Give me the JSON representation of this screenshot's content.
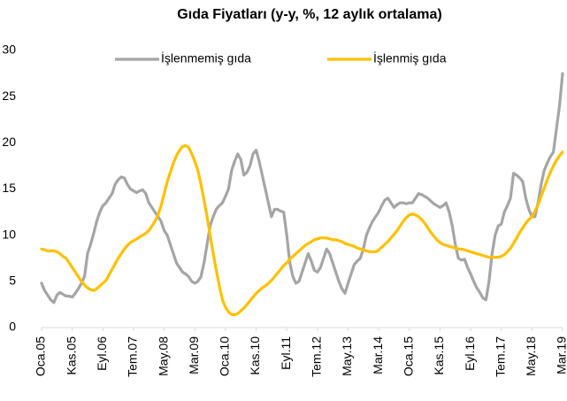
{
  "chart_data": {
    "type": "line",
    "title": "Gıda Fiyatları (y-y, %, 12 aylık ortalama)",
    "categories": [
      "Oca.05",
      null,
      null,
      null,
      null,
      null,
      null,
      null,
      null,
      null,
      "Kas.05",
      null,
      null,
      null,
      null,
      null,
      null,
      null,
      null,
      null,
      "Eyl.06",
      null,
      null,
      null,
      null,
      null,
      null,
      null,
      null,
      null,
      "Tem.07",
      null,
      null,
      null,
      null,
      null,
      null,
      null,
      null,
      null,
      "May.08",
      null,
      null,
      null,
      null,
      null,
      null,
      null,
      null,
      null,
      "Mar.09",
      null,
      null,
      null,
      null,
      null,
      null,
      null,
      null,
      null,
      "Oca.10",
      null,
      null,
      null,
      null,
      null,
      null,
      null,
      null,
      null,
      "Kas.10",
      null,
      null,
      null,
      null,
      null,
      null,
      null,
      null,
      null,
      "Eyl.11",
      null,
      null,
      null,
      null,
      null,
      null,
      null,
      null,
      null,
      "Tem.12",
      null,
      null,
      null,
      null,
      null,
      null,
      null,
      null,
      null,
      "May.13",
      null,
      null,
      null,
      null,
      null,
      null,
      null,
      null,
      null,
      "Mar.14",
      null,
      null,
      null,
      null,
      null,
      null,
      null,
      null,
      null,
      "Oca.15",
      null,
      null,
      null,
      null,
      null,
      null,
      null,
      null,
      null,
      "Kas.15",
      null,
      null,
      null,
      null,
      null,
      null,
      null,
      null,
      null,
      "Eyl.16",
      null,
      null,
      null,
      null,
      null,
      null,
      null,
      null,
      null,
      "Tem.17",
      null,
      null,
      null,
      null,
      null,
      null,
      null,
      null,
      null,
      "May.18",
      null,
      null,
      null,
      null,
      null,
      null,
      null,
      null,
      null,
      "Mar.19"
    ],
    "series": [
      {
        "name": "İşlenmemiş gıda",
        "color": "#a5a5a5",
        "values": [
          4.8,
          4.0,
          3.5,
          3.0,
          2.7,
          3.5,
          3.8,
          3.6,
          3.4,
          3.4,
          3.3,
          3.7,
          4.2,
          4.8,
          5.5,
          8.0,
          9.0,
          10.2,
          11.5,
          12.5,
          13.2,
          13.5,
          14.0,
          14.5,
          15.5,
          16.0,
          16.3,
          16.2,
          15.5,
          15.0,
          14.8,
          14.6,
          14.8,
          14.9,
          14.5,
          13.5,
          13.0,
          12.5,
          12.0,
          11.5,
          10.5,
          10.0,
          9.0,
          8.0,
          7.0,
          6.5,
          6.0,
          5.8,
          5.5,
          5.0,
          4.8,
          5.0,
          5.5,
          7.0,
          9.0,
          11.0,
          12.0,
          12.8,
          13.2,
          13.5,
          14.2,
          15.0,
          17.0,
          18.0,
          18.8,
          18.2,
          16.5,
          16.8,
          17.5,
          18.8,
          19.2,
          18.0,
          16.5,
          15.0,
          13.5,
          12.0,
          12.8,
          12.8,
          12.6,
          12.5,
          10.0,
          7.0,
          5.5,
          4.8,
          5.0,
          6.0,
          7.0,
          8.0,
          7.2,
          6.2,
          6.0,
          6.5,
          7.5,
          8.5,
          8.0,
          7.0,
          6.0,
          5.0,
          4.2,
          3.7,
          4.8,
          5.8,
          6.8,
          7.2,
          7.5,
          8.5,
          10.0,
          10.8,
          11.5,
          12.0,
          12.5,
          13.2,
          13.8,
          14.0,
          13.5,
          13.0,
          13.3,
          13.5,
          13.5,
          13.4,
          13.5,
          13.5,
          14.0,
          14.5,
          14.4,
          14.2,
          14.0,
          13.7,
          13.4,
          13.2,
          13.0,
          13.2,
          13.5,
          12.5,
          11.0,
          9.0,
          7.5,
          7.3,
          7.4,
          6.5,
          5.8,
          5.0,
          4.3,
          3.8,
          3.2,
          3.0,
          5.0,
          8.0,
          10.0,
          11.0,
          11.2,
          12.5,
          13.2,
          14.0,
          16.7,
          16.5,
          16.2,
          15.8,
          14.0,
          12.8,
          12.0,
          12.0,
          13.5,
          15.5,
          17.0,
          17.8,
          18.5,
          19.0,
          21.5,
          24.0,
          27.5
        ]
      },
      {
        "name": "İşlenmiş gıda",
        "color": "#ffc000",
        "values": [
          8.5,
          8.4,
          8.3,
          8.3,
          8.3,
          8.2,
          8.0,
          7.7,
          7.5,
          7.0,
          6.5,
          6.0,
          5.5,
          5.0,
          4.6,
          4.3,
          4.1,
          4.0,
          4.2,
          4.5,
          4.8,
          5.1,
          5.7,
          6.3,
          6.9,
          7.5,
          8.0,
          8.5,
          8.9,
          9.2,
          9.4,
          9.6,
          9.8,
          10.0,
          10.2,
          10.5,
          11.0,
          11.5,
          12.2,
          13.2,
          14.5,
          15.8,
          16.8,
          17.8,
          18.6,
          19.2,
          19.6,
          19.7,
          19.5,
          18.8,
          18.0,
          17.0,
          15.5,
          13.8,
          12.0,
          10.0,
          8.0,
          6.2,
          4.5,
          3.0,
          2.2,
          1.7,
          1.4,
          1.4,
          1.5,
          1.8,
          2.1,
          2.5,
          2.9,
          3.3,
          3.7,
          4.0,
          4.3,
          4.5,
          4.8,
          5.1,
          5.5,
          5.9,
          6.3,
          6.7,
          7.0,
          7.4,
          7.7,
          8.0,
          8.3,
          8.6,
          8.9,
          9.1,
          9.3,
          9.5,
          9.6,
          9.7,
          9.7,
          9.7,
          9.6,
          9.5,
          9.5,
          9.4,
          9.3,
          9.1,
          9.0,
          8.9,
          8.8,
          8.6,
          8.5,
          8.4,
          8.3,
          8.2,
          8.2,
          8.2,
          8.4,
          8.7,
          9.0,
          9.3,
          9.7,
          10.1,
          10.5,
          11.0,
          11.5,
          11.9,
          12.2,
          12.3,
          12.2,
          12.0,
          11.7,
          11.3,
          10.8,
          10.3,
          9.9,
          9.5,
          9.2,
          9.0,
          8.9,
          8.8,
          8.7,
          8.6,
          8.5,
          8.5,
          8.4,
          8.3,
          8.2,
          8.1,
          8.0,
          7.9,
          7.8,
          7.7,
          7.6,
          7.6,
          7.6,
          7.6,
          7.7,
          7.9,
          8.2,
          8.6,
          9.1,
          9.7,
          10.3,
          10.8,
          11.3,
          11.7,
          12.0,
          12.6,
          13.3,
          14.2,
          15.1,
          16.0,
          16.8,
          17.5,
          18.1,
          18.6,
          19.0
        ]
      }
    ],
    "ylim": [
      0,
      30
    ],
    "yticks": [
      0,
      5,
      10,
      15,
      20,
      25,
      30
    ],
    "grid": false,
    "legend": "top"
  }
}
